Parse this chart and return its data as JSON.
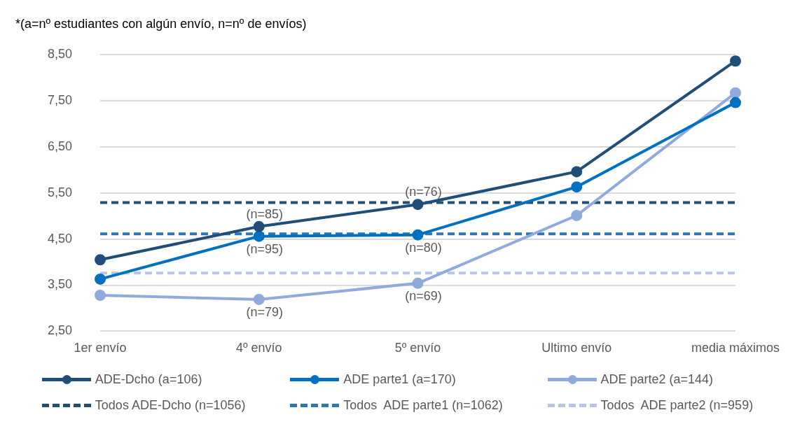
{
  "chart_data": {
    "type": "line",
    "annotations": [
      "*(a=nº estudiantes con algún envío, n=nº de envíos)",
      {
        "text": "(n=85)",
        "x": "4º envío",
        "y": 4.77
      },
      {
        "text": "(n=95)",
        "x": "4º envío",
        "y": 4.56
      },
      {
        "text": "(n=79)",
        "x": "4º envío",
        "y": 3.19
      },
      {
        "text": "(n=76)",
        "x": "5º envío",
        "y": 5.25
      },
      {
        "text": "(n=80)",
        "x": "5º envío",
        "y": 4.59
      },
      {
        "text": "(n=69)",
        "x": "5º envío",
        "y": 3.54
      }
    ],
    "categories": [
      "1er envío",
      "4º envío",
      "5º envío",
      "Ultimo envío",
      "media máximos"
    ],
    "series": [
      {
        "name": "ADE-Dcho (a=106)",
        "color": "#1f4e79",
        "values": [
          4.05,
          4.77,
          5.25,
          5.96,
          8.36
        ]
      },
      {
        "name": "ADE parte1 (a=170)",
        "color": "#0070c0",
        "values": [
          3.63,
          4.56,
          4.59,
          5.63,
          7.46
        ]
      },
      {
        "name": "ADE parte2 (a=144)",
        "color": "#8faadc",
        "values": [
          3.28,
          3.19,
          3.54,
          5.01,
          7.67
        ]
      },
      {
        "name": "Todos ADE-Dcho (n=1056)",
        "color": "#1f4e79",
        "line_style": "dashed",
        "marker": "none",
        "values": [
          5.29,
          5.29,
          5.29,
          5.29,
          5.29
        ]
      },
      {
        "name": "Todos  ADE parte1 (n=1062)",
        "color": "#2e75b6",
        "line_style": "dashed",
        "marker": "none",
        "values": [
          4.61,
          4.61,
          4.61,
          4.61,
          4.61
        ]
      },
      {
        "name": "Todos  ADE parte2 (n=959)",
        "color": "#b4c7e7",
        "line_style": "dashed",
        "marker": "none",
        "values": [
          3.76,
          3.76,
          3.76,
          3.76,
          3.76
        ]
      }
    ],
    "ylim": [
      2.5,
      8.5
    ],
    "yticks": [
      {
        "value": 2.5,
        "label": "2,50"
      },
      {
        "value": 3.5,
        "label": "3,50"
      },
      {
        "value": 4.5,
        "label": "4,50"
      },
      {
        "value": 5.5,
        "label": "5,50"
      },
      {
        "value": 6.5,
        "label": "6,50"
      },
      {
        "value": 7.5,
        "label": "7,50"
      },
      {
        "value": 8.5,
        "label": "8,50"
      }
    ],
    "grid": "y",
    "legend": "bottom",
    "marker": "circle",
    "line_style": "solid"
  }
}
